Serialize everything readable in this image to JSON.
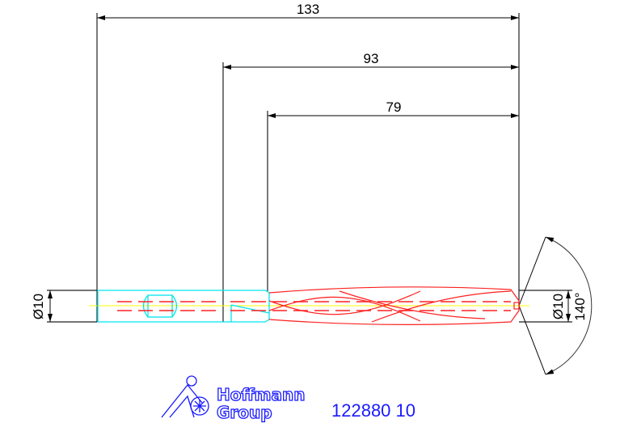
{
  "dimensions": {
    "overall_length": "133",
    "shank_to_tip": "93",
    "flute_length": "79",
    "shank_diameter": "Ø10",
    "tip_diameter": "Ø10",
    "point_angle": "140°"
  },
  "logo": {
    "line1": "Hoffmann",
    "line2": "Group"
  },
  "article_number": "122880 10",
  "colors": {
    "shank": "#00e5ee",
    "flute": "#ff2020",
    "centerline": "#ffff00",
    "dimension": "#000000",
    "brand": "#1a1aff"
  }
}
